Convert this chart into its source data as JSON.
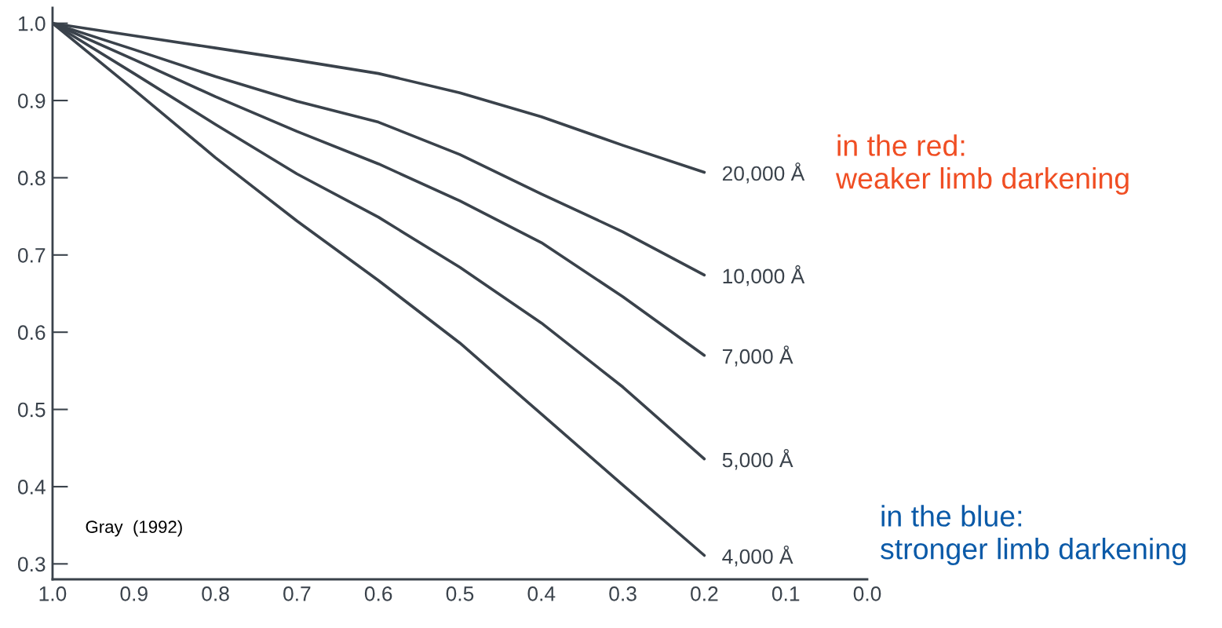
{
  "chart_data": {
    "type": "line",
    "x": [
      1.0,
      0.9,
      0.8,
      0.7,
      0.6,
      0.5,
      0.4,
      0.3,
      0.2
    ],
    "series": [
      {
        "name": "20,000 Å",
        "color": "#3a424b",
        "values": [
          1.0,
          0.984,
          0.968,
          0.952,
          0.935,
          0.91,
          0.879,
          0.842,
          0.807
        ]
      },
      {
        "name": "10,000 Å",
        "color": "#3a424b",
        "values": [
          1.0,
          0.966,
          0.931,
          0.899,
          0.872,
          0.83,
          0.779,
          0.73,
          0.674
        ]
      },
      {
        "name": "7,000 Å",
        "color": "#3a424b",
        "values": [
          1.0,
          0.953,
          0.905,
          0.86,
          0.818,
          0.77,
          0.716,
          0.646,
          0.57
        ]
      },
      {
        "name": "5,000 Å",
        "color": "#3a424b",
        "values": [
          1.0,
          0.935,
          0.869,
          0.805,
          0.749,
          0.684,
          0.612,
          0.529,
          0.436
        ]
      },
      {
        "name": "4,000 Å",
        "color": "#3a424b",
        "values": [
          1.0,
          0.914,
          0.826,
          0.744,
          0.667,
          0.586,
          0.494,
          0.402,
          0.311
        ]
      }
    ],
    "xlim": [
      1.0,
      0.0
    ],
    "xticks": [
      {
        "value": 1.0,
        "label": "1.0"
      },
      0.9,
      0.8,
      0.7,
      0.6,
      0.5,
      0.4,
      0.3,
      0.2,
      0.1,
      {
        "value": 0.0,
        "label": "0.0"
      }
    ],
    "ylim": [
      0.28,
      1.02
    ],
    "yticks": [
      0.3,
      0.4,
      0.5,
      0.6,
      0.7,
      0.8,
      0.9,
      {
        "value": 1.0,
        "label": "1.0"
      }
    ],
    "grid": false,
    "legend": false,
    "marker": "none",
    "line_style": "solid",
    "annotations": [
      "in the red:\nweaker limb darkening",
      "in the blue:\nstronger limb darkening",
      "Gray  (1992)"
    ]
  }
}
